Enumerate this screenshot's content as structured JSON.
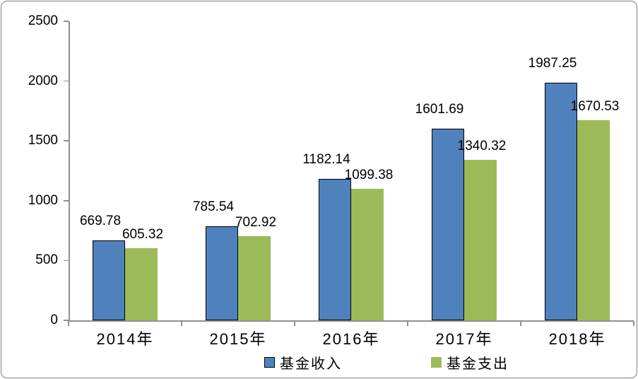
{
  "chart_data": {
    "type": "bar",
    "title": "",
    "xlabel": "",
    "ylabel": "",
    "categories": [
      "2014年",
      "2015年",
      "2016年",
      "2017年",
      "2018年"
    ],
    "series": [
      {
        "name": "基金收入",
        "color": "#4F81BD",
        "border_color": "#000000",
        "values": [
          669.78,
          785.54,
          1182.14,
          1601.69,
          1987.25
        ],
        "labels": [
          "669.78",
          "785.54",
          "1182.14",
          "1601.69",
          "1987.25"
        ]
      },
      {
        "name": "基金支出",
        "color": "#9BBB59",
        "border_color": "",
        "values": [
          605.32,
          702.92,
          1099.38,
          1340.32,
          1670.53
        ],
        "labels": [
          "605.32",
          "702.92",
          "1099.38",
          "1340.32",
          "1670.53"
        ]
      }
    ],
    "ylim": [
      0,
      2500
    ],
    "yticks": [
      "0",
      "500",
      "1000",
      "1500",
      "2000",
      "2500"
    ],
    "grid": false,
    "legend_position": "bottom",
    "data_labels": "outside-end"
  },
  "colors": {
    "axis": "#909090",
    "frame_border": "#7F7F7F",
    "background": "#FFFFFF",
    "text": "#000000",
    "series_income": "#4F81BD",
    "series_expense": "#9BBB59"
  }
}
